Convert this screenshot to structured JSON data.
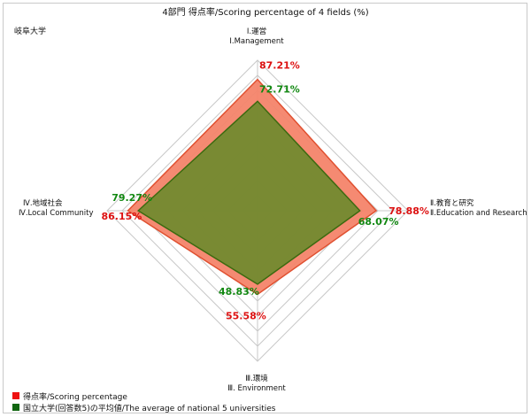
{
  "chart_data": {
    "type": "radar",
    "title": "4部門 得点率/Scoring percentage of 4 fields (%)",
    "university": "岐阜大学",
    "axes": [
      {
        "label_ja": "Ⅰ.運営",
        "label_en": "Ⅰ.Management"
      },
      {
        "label_ja": "Ⅱ.教育と研究",
        "label_en": "Ⅱ.Education and Research"
      },
      {
        "label_ja": "Ⅲ.環境",
        "label_en": "Ⅲ. Environment"
      },
      {
        "label_ja": "Ⅳ.地域社会",
        "label_en": "Ⅳ.Local Community"
      }
    ],
    "rmax": 100,
    "rings": 10,
    "series": [
      {
        "name": "得点率/Scoring percentage",
        "values": [
          87.21,
          78.88,
          55.58,
          86.15
        ],
        "labels": [
          "87.21%",
          "78.88%",
          "55.58%",
          "86.15%"
        ],
        "fill": "#f4846a",
        "stroke": "#e05030",
        "label_color": "#dd1111",
        "legend_color": "#ee1111"
      },
      {
        "name": "国立大学(回答数5)の平均値/The average of national 5 universities",
        "values": [
          72.71,
          68.07,
          48.83,
          79.27
        ],
        "labels": [
          "72.71%",
          "68.07%",
          "48.83%",
          "79.27%"
        ],
        "fill": "#6e8a2e",
        "stroke": "#3c6a10",
        "label_color": "#118811",
        "legend_color": "#116611"
      }
    ],
    "legend_position": "bottom-left"
  }
}
